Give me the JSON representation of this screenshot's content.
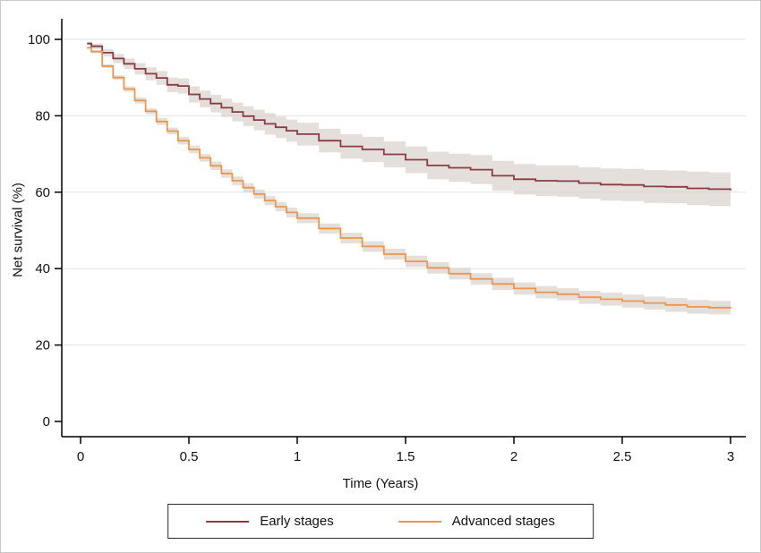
{
  "chart_data": {
    "type": "line",
    "subtype": "kaplan-meier-step-with-ci-bands",
    "title": "",
    "xlabel": "Time (Years)",
    "ylabel": "Net survival (%)",
    "xlim": [
      0,
      3
    ],
    "ylim": [
      0,
      100
    ],
    "x_ticks": [
      0,
      0.5,
      1,
      1.5,
      2,
      2.5,
      3
    ],
    "y_ticks": [
      0,
      20,
      40,
      60,
      80,
      100
    ],
    "grid": true,
    "grid_y": [
      20,
      40,
      60,
      80,
      100
    ],
    "grid_color": "#e2e2e2",
    "band_color": "#d6cec6",
    "legend_position": "bottom",
    "series": [
      {
        "name": "Early stages",
        "color": "#8a3b44",
        "points_format": [
          "time_years",
          "net_survival_pct",
          "ci_half_width_pct"
        ],
        "points": [
          [
            0.03,
            98.9,
            0.5
          ],
          [
            0.05,
            98.2,
            0.7
          ],
          [
            0.1,
            96.5,
            1.0
          ],
          [
            0.15,
            95.0,
            1.2
          ],
          [
            0.2,
            93.6,
            1.4
          ],
          [
            0.25,
            92.3,
            1.5
          ],
          [
            0.3,
            91.0,
            1.7
          ],
          [
            0.35,
            89.9,
            1.8
          ],
          [
            0.4,
            88.1,
            1.9
          ],
          [
            0.45,
            87.8,
            2.0
          ],
          [
            0.5,
            85.6,
            2.1
          ],
          [
            0.55,
            84.4,
            2.2
          ],
          [
            0.6,
            83.2,
            2.3
          ],
          [
            0.65,
            82.1,
            2.4
          ],
          [
            0.7,
            81.0,
            2.5
          ],
          [
            0.75,
            79.9,
            2.6
          ],
          [
            0.8,
            78.9,
            2.7
          ],
          [
            0.85,
            77.9,
            2.8
          ],
          [
            0.9,
            77.0,
            2.8
          ],
          [
            0.95,
            76.1,
            2.9
          ],
          [
            1.0,
            75.2,
            3.0
          ],
          [
            1.1,
            73.5,
            3.1
          ],
          [
            1.2,
            72.0,
            3.2
          ],
          [
            1.3,
            71.2,
            3.3
          ],
          [
            1.4,
            69.9,
            3.4
          ],
          [
            1.5,
            68.5,
            3.5
          ],
          [
            1.6,
            67.0,
            3.6
          ],
          [
            1.7,
            66.4,
            3.7
          ],
          [
            1.8,
            65.9,
            3.8
          ],
          [
            1.9,
            64.3,
            3.9
          ],
          [
            2.0,
            63.4,
            4.0
          ],
          [
            2.1,
            63.0,
            4.0
          ],
          [
            2.2,
            62.9,
            4.1
          ],
          [
            2.3,
            62.4,
            4.1
          ],
          [
            2.4,
            62.0,
            4.2
          ],
          [
            2.5,
            61.9,
            4.2
          ],
          [
            2.6,
            61.5,
            4.3
          ],
          [
            2.7,
            61.4,
            4.3
          ],
          [
            2.8,
            61.0,
            4.4
          ],
          [
            2.9,
            60.8,
            4.4
          ],
          [
            3.0,
            60.5,
            4.5
          ]
        ]
      },
      {
        "name": "Advanced stages",
        "color": "#e8974e",
        "points_format": [
          "time_years",
          "net_survival_pct",
          "ci_half_width_pct"
        ],
        "points": [
          [
            0.03,
            97.8,
            0.3
          ],
          [
            0.05,
            96.8,
            0.4
          ],
          [
            0.1,
            93.0,
            0.5
          ],
          [
            0.15,
            90.0,
            0.6
          ],
          [
            0.2,
            87.0,
            0.7
          ],
          [
            0.25,
            84.0,
            0.8
          ],
          [
            0.3,
            81.2,
            0.8
          ],
          [
            0.35,
            78.5,
            0.9
          ],
          [
            0.4,
            76.0,
            0.9
          ],
          [
            0.45,
            73.5,
            1.0
          ],
          [
            0.5,
            71.2,
            1.0
          ],
          [
            0.55,
            69.0,
            1.0
          ],
          [
            0.6,
            66.9,
            1.1
          ],
          [
            0.65,
            64.9,
            1.1
          ],
          [
            0.7,
            63.0,
            1.1
          ],
          [
            0.75,
            61.2,
            1.2
          ],
          [
            0.8,
            59.5,
            1.2
          ],
          [
            0.85,
            57.8,
            1.2
          ],
          [
            0.9,
            56.2,
            1.2
          ],
          [
            0.95,
            54.7,
            1.3
          ],
          [
            1.0,
            53.2,
            1.3
          ],
          [
            1.1,
            50.5,
            1.3
          ],
          [
            1.2,
            48.0,
            1.4
          ],
          [
            1.3,
            45.8,
            1.4
          ],
          [
            1.4,
            43.8,
            1.4
          ],
          [
            1.5,
            41.9,
            1.5
          ],
          [
            1.6,
            40.2,
            1.5
          ],
          [
            1.7,
            38.7,
            1.5
          ],
          [
            1.8,
            37.3,
            1.5
          ],
          [
            1.9,
            36.0,
            1.6
          ],
          [
            2.0,
            34.8,
            1.6
          ],
          [
            2.1,
            33.8,
            1.6
          ],
          [
            2.2,
            33.3,
            1.6
          ],
          [
            2.3,
            32.5,
            1.7
          ],
          [
            2.4,
            32.0,
            1.7
          ],
          [
            2.5,
            31.5,
            1.7
          ],
          [
            2.6,
            31.0,
            1.7
          ],
          [
            2.7,
            30.5,
            1.8
          ],
          [
            2.8,
            30.0,
            1.8
          ],
          [
            2.9,
            29.8,
            1.8
          ],
          [
            3.0,
            29.6,
            1.8
          ]
        ]
      }
    ]
  }
}
